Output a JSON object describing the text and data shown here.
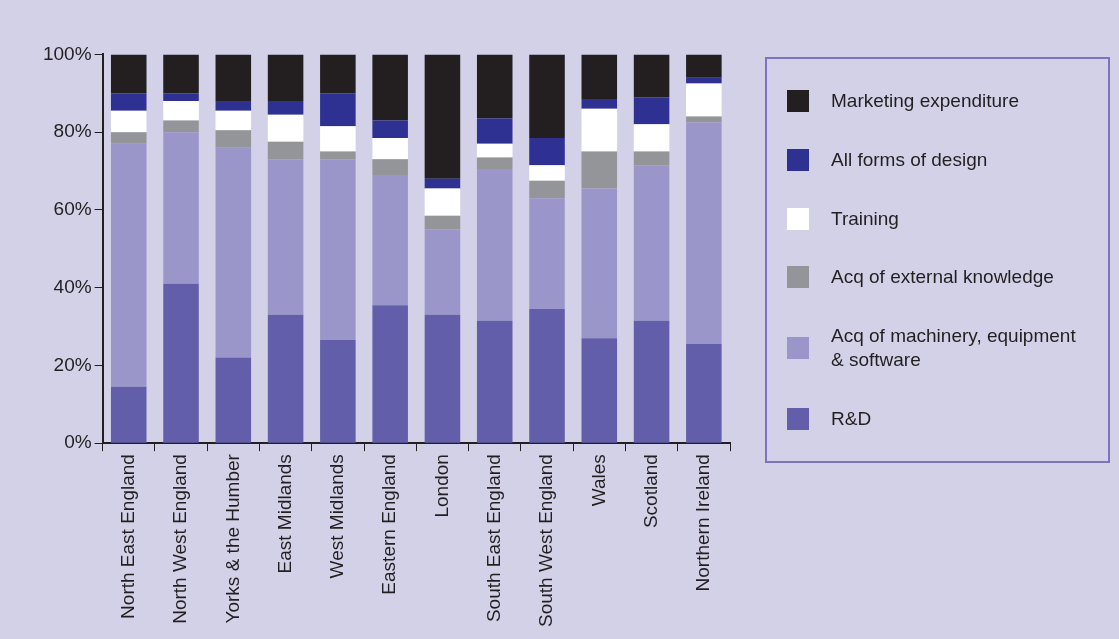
{
  "chart_data": {
    "type": "bar",
    "stacked": true,
    "legend": "right",
    "grid": false,
    "categories": [
      "North East England",
      "North West England",
      "Yorks & the Humber",
      "East Midlands",
      "West Midlands",
      "Eastern England",
      "London",
      "South East England",
      "South West England",
      "Wales",
      "Scotland",
      "Northern Ireland"
    ],
    "ylim": [
      0,
      100
    ],
    "yticks": [
      {
        "value": 0,
        "label": "0%"
      },
      {
        "value": 20,
        "label": "20%"
      },
      {
        "value": 40,
        "label": "40%"
      },
      {
        "value": 60,
        "label": "60%"
      },
      {
        "value": 80,
        "label": "80%"
      },
      {
        "value": 100,
        "label": "100%"
      }
    ],
    "series": [
      {
        "name": "R&D",
        "color": "#625ea9",
        "values": [
          14.5,
          41,
          22,
          33,
          26.5,
          35.5,
          33,
          31.5,
          34.5,
          27,
          31.5,
          25.5
        ]
      },
      {
        "name": "Acq of machinery, equipment & software",
        "color": "#9b96c9",
        "values": [
          62.5,
          39,
          54,
          40,
          46.5,
          33.5,
          22,
          39,
          28.5,
          38.5,
          40,
          57
        ]
      },
      {
        "name": "Acq of external knowledge",
        "color": "#939598",
        "values": [
          3,
          3,
          4.5,
          4.5,
          2,
          4,
          3.5,
          3,
          4.5,
          9.5,
          3.5,
          1.5
        ]
      },
      {
        "name": "Training",
        "color": "#ffffff",
        "values": [
          5.5,
          5,
          5,
          7,
          6.5,
          5.5,
          7,
          3.5,
          4,
          11,
          7,
          8.5
        ]
      },
      {
        "name": "All forms of design",
        "color": "#2e3192",
        "values": [
          4.5,
          2,
          2.5,
          3.5,
          8.5,
          4.5,
          2.5,
          6.5,
          7,
          2.5,
          7,
          1.5
        ]
      },
      {
        "name": "Marketing expenditure",
        "color": "#231f20",
        "values": [
          10,
          10,
          12,
          12,
          10,
          17,
          32,
          16.5,
          21.5,
          11.5,
          11,
          6
        ]
      }
    ]
  }
}
